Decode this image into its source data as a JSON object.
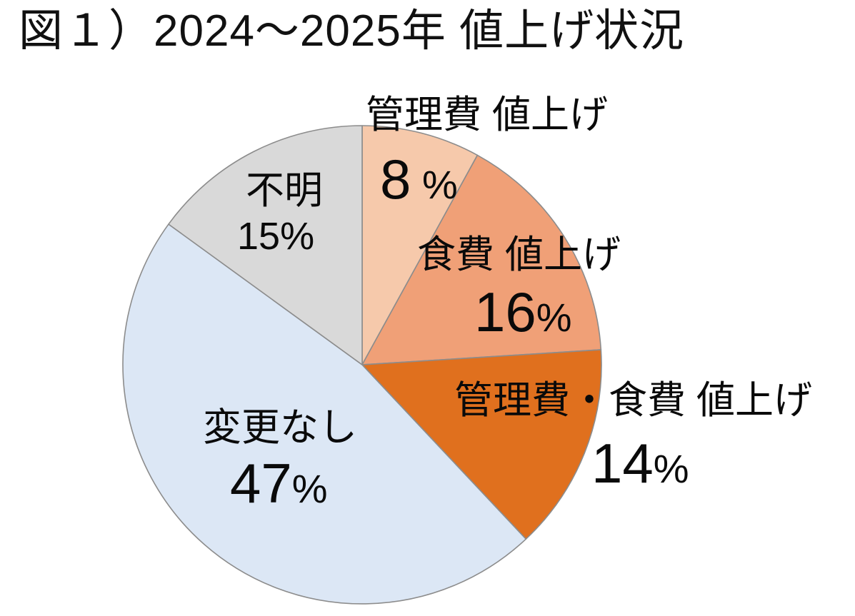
{
  "title": "図１）2024～2025年 値上げ状況",
  "colors": {
    "background": "#FFFFFF",
    "text": "#0A0A0A",
    "slice_border": "#8C8C8C"
  },
  "chart_data": {
    "type": "pie",
    "title": "図１）2024～2025年 値上げ状況",
    "categories": [
      "管理費 値上げ",
      "食費 値上げ",
      "管理費・食費 値上げ",
      "変更なし",
      "不明"
    ],
    "values": [
      8,
      16,
      14,
      47,
      15
    ],
    "unit": "%",
    "colors": [
      "#F6C9AB",
      "#F0A077",
      "#E0701E",
      "#DCE7F5",
      "#D9D9D9"
    ],
    "start_angle_deg": 0,
    "direction": "clockwise",
    "legend": "none",
    "labels_on_chart": true,
    "data_labels": [
      {
        "name": "管理費 値上げ",
        "digits": "8",
        "suffix": " %"
      },
      {
        "name": "食費 値上げ",
        "digits": "16",
        "suffix": "%"
      },
      {
        "name": "管理費・食費 値上げ",
        "digits": "14",
        "suffix": "%"
      },
      {
        "name": "変更なし",
        "digits": "47",
        "suffix": "%"
      },
      {
        "name": "不明",
        "digits": "15",
        "suffix": "%"
      }
    ]
  }
}
